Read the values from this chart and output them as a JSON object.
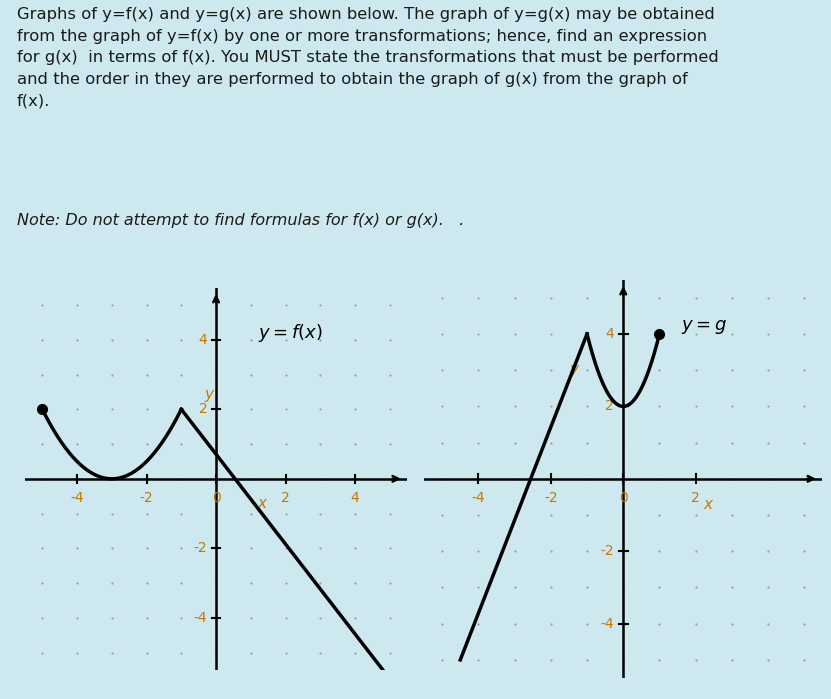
{
  "bg_color": "#cde8ef",
  "graph_panel_color": "#e8f4f8",
  "plot_bg_color": "#f5fafc",
  "text_color": "#1a1a1a",
  "header_text": "Graphs of y=f(x) and y=g(x) are shown below. The graph of y=g(x) may be obtained\nfrom the graph of y=f(x) by one or more transformations; hence, find an expression\nfor g(x)  in terms of f(x). You MUST state the transformations that must be performed\nand the order in they are performed to obtain the graph of g(x) from the graph of\nf(x).",
  "note_text": "Note: Do not attempt to find formulas for f(x) or g(x).",
  "label_color": "#c87800",
  "curve_color": "#000000",
  "xlim": [
    -5.5,
    5.5
  ],
  "ylim": [
    -5.5,
    5.5
  ],
  "left_xticks_labels": [
    [
      -4,
      "-4"
    ],
    [
      -2,
      "-2"
    ],
    [
      0,
      "0"
    ],
    [
      2,
      "2"
    ],
    [
      4,
      "4"
    ]
  ],
  "left_ytick_labels": [
    [
      -4,
      "-4"
    ],
    [
      -2,
      "-2"
    ],
    [
      2,
      "2"
    ],
    [
      4,
      "4"
    ]
  ],
  "right_xticks_labels": [
    [
      -4,
      "-4"
    ],
    [
      -2,
      "-2"
    ],
    [
      0,
      "0"
    ],
    [
      2,
      "2"
    ]
  ],
  "right_ytick_labels": [
    [
      -4,
      "-4"
    ],
    [
      -2,
      "-2"
    ],
    [
      2,
      "2"
    ],
    [
      4,
      "4"
    ]
  ]
}
